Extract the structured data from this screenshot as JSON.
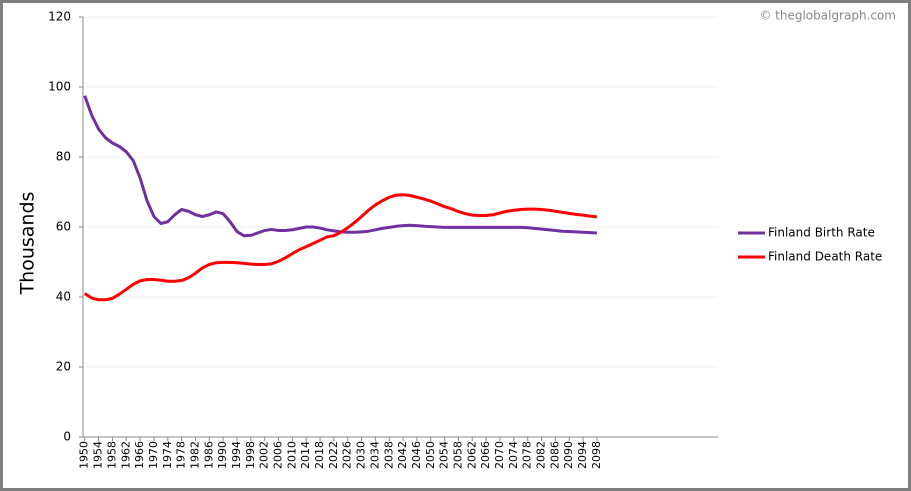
{
  "chart_data": {
    "type": "line",
    "watermark": "© theglobalgraph.com",
    "y_label": "Thousands",
    "x": [
      1950,
      1952,
      1954,
      1956,
      1958,
      1960,
      1962,
      1964,
      1966,
      1968,
      1970,
      1972,
      1974,
      1976,
      1978,
      1980,
      1982,
      1984,
      1986,
      1988,
      1990,
      1992,
      1994,
      1996,
      1998,
      2000,
      2002,
      2004,
      2006,
      2008,
      2010,
      2012,
      2014,
      2016,
      2018,
      2020,
      2022,
      2024,
      2026,
      2028,
      2030,
      2032,
      2034,
      2036,
      2038,
      2040,
      2042,
      2044,
      2046,
      2048,
      2050,
      2052,
      2054,
      2056,
      2058,
      2060,
      2062,
      2064,
      2066,
      2068,
      2070,
      2072,
      2074,
      2076,
      2078,
      2080,
      2082,
      2084,
      2086,
      2088,
      2090,
      2092,
      2094,
      2096,
      2098
    ],
    "series": [
      {
        "name": "Finland Birth Rate",
        "color": "#7030a0",
        "values": [
          97.5,
          92,
          88,
          85.5,
          84,
          83,
          81.5,
          79,
          74,
          67.5,
          63,
          61,
          61.5,
          63.5,
          65,
          64.5,
          63.5,
          63,
          63.5,
          64.3,
          63.8,
          61.5,
          58.7,
          57.5,
          57.6,
          58.3,
          59,
          59.3,
          59,
          59,
          59.2,
          59.6,
          60,
          60,
          59.7,
          59.2,
          58.9,
          58.6,
          58.5,
          58.5,
          58.6,
          58.8,
          59.2,
          59.6,
          59.9,
          60.2,
          60.4,
          60.5,
          60.4,
          60.2,
          60.1,
          60,
          59.9,
          59.9,
          59.9,
          59.9,
          59.9,
          59.9,
          59.9,
          59.9,
          59.9,
          59.9,
          59.9,
          59.9,
          59.8,
          59.6,
          59.4,
          59.2,
          59,
          58.8,
          58.7,
          58.6,
          58.5,
          58.4,
          58.3
        ]
      },
      {
        "name": "Finland Death Rate",
        "color": "#ff0000",
        "values": [
          41,
          39.7,
          39.2,
          39.2,
          39.6,
          40.8,
          42.2,
          43.6,
          44.6,
          45,
          45,
          44.8,
          44.5,
          44.5,
          44.7,
          45.5,
          46.8,
          48.3,
          49.3,
          49.8,
          49.9,
          49.9,
          49.8,
          49.6,
          49.4,
          49.3,
          49.3,
          49.5,
          50.2,
          51.2,
          52.4,
          53.5,
          54.4,
          55.3,
          56.2,
          57.2,
          57.5,
          58.5,
          59.8,
          61.3,
          63,
          64.8,
          66.3,
          67.5,
          68.5,
          69.1,
          69.2,
          69,
          68.5,
          68,
          67.4,
          66.6,
          65.8,
          65.2,
          64.4,
          63.8,
          63.4,
          63.3,
          63.3,
          63.5,
          64,
          64.5,
          64.8,
          65,
          65.1,
          65.1,
          65,
          64.8,
          64.5,
          64.2,
          63.9,
          63.6,
          63.4,
          63.1,
          62.9
        ]
      }
    ],
    "xlim": [
      1949.5,
      2133
    ],
    "xticks": [
      1950,
      1954,
      1958,
      1962,
      1966,
      1970,
      1974,
      1978,
      1982,
      1986,
      1990,
      1994,
      1998,
      2002,
      2006,
      2010,
      2014,
      2018,
      2022,
      2026,
      2030,
      2034,
      2038,
      2042,
      2046,
      2050,
      2054,
      2058,
      2062,
      2066,
      2070,
      2074,
      2078,
      2082,
      2086,
      2090,
      2094,
      2098
    ],
    "ylim": [
      0,
      120
    ],
    "yticks": [
      0,
      20,
      40,
      60,
      80,
      100,
      120
    ],
    "grid": true,
    "legend": "right"
  }
}
